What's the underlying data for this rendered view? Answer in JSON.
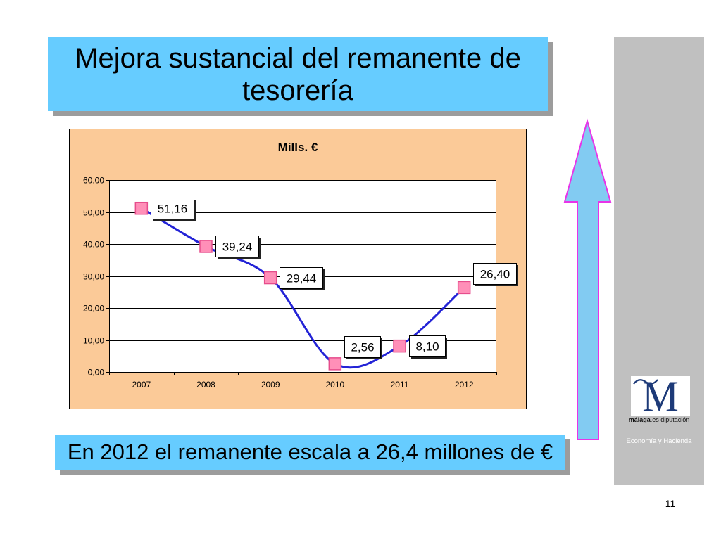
{
  "slide": {
    "title": "Mejora sustancial del remanente de tesorería",
    "caption": "En 2012 el remanente escala a 26,4 millones de €",
    "page_number": "11",
    "department": "Economía y Hacienda",
    "logo": {
      "mark": "M",
      "name_bold": "málaga",
      "name_rest": ".es diputación"
    }
  },
  "icons": {
    "arrow": "up-arrow-icon"
  },
  "colors": {
    "title_box": "#66CCFF",
    "caption_box": "#66CCFF",
    "box_shadow": "#9C9C9C",
    "chart_background": "#FBCA98",
    "plot_background": "#FFFFFF",
    "series_line": "#2323D6",
    "marker_fill": "#FF8FB8",
    "marker_stroke": "#E64D8C",
    "arrow_fill": "#82CBF2",
    "arrow_stroke": "#E833E8",
    "side_panel": "#C0C0C0",
    "logo_navy": "#1D3A78"
  },
  "chart_data": {
    "type": "line",
    "title": "Mills. €",
    "xlabel": "",
    "ylabel": "",
    "categories": [
      "2007",
      "2008",
      "2009",
      "2010",
      "2011",
      "2012"
    ],
    "series": [
      {
        "values": [
          51.16,
          39.24,
          29.44,
          2.56,
          8.1,
          26.4
        ],
        "smooth": true,
        "marker": "square"
      }
    ],
    "data_labels": [
      "51,16",
      "39,24",
      "29,44",
      "2,56",
      "8,10",
      "26,40"
    ],
    "ylim": [
      0,
      60
    ],
    "y_ticks": [
      0,
      10,
      20,
      30,
      40,
      50,
      60
    ],
    "y_tick_labels": [
      "0,00",
      "10,00",
      "20,00",
      "30,00",
      "40,00",
      "50,00",
      "60,00"
    ],
    "grid": true,
    "legend": "none"
  }
}
